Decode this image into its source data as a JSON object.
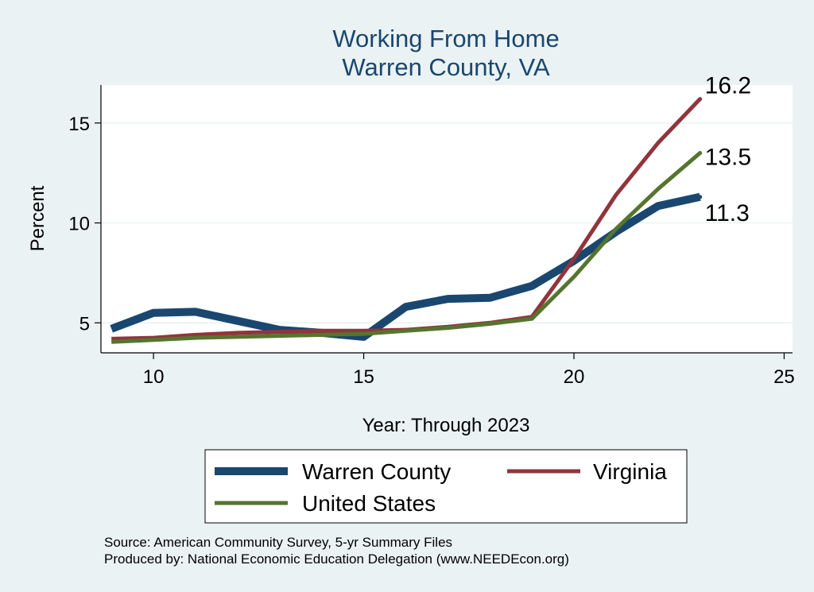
{
  "chart_data": {
    "type": "line",
    "title": "Working From Home",
    "subtitle": "Warren County, VA",
    "xlabel": "Year: Through 2023",
    "ylabel": "Percent",
    "xlim": [
      8.75,
      25.2
    ],
    "ylim": [
      3.5,
      16.9
    ],
    "x_ticks": [
      10,
      15,
      20,
      25
    ],
    "y_ticks": [
      5,
      10,
      15
    ],
    "grid": true,
    "legend_position": "bottom",
    "series": [
      {
        "name": "Warren County",
        "color": "#1a476f",
        "x": [
          9,
          10,
          11,
          12,
          13,
          14,
          15,
          16,
          17,
          18,
          19,
          20,
          21,
          22,
          23
        ],
        "y": [
          4.7,
          5.5,
          5.55,
          5.1,
          4.65,
          4.5,
          4.3,
          5.8,
          6.2,
          6.25,
          6.85,
          8.1,
          9.55,
          10.85,
          11.3
        ],
        "end_label": "11.3"
      },
      {
        "name": "Virginia",
        "color": "#90353b",
        "x": [
          9,
          10,
          11,
          12,
          13,
          14,
          15,
          16,
          17,
          18,
          19,
          20,
          21,
          22,
          23
        ],
        "y": [
          4.2,
          4.25,
          4.4,
          4.5,
          4.55,
          4.6,
          4.6,
          4.65,
          4.8,
          5.0,
          5.3,
          8.2,
          11.4,
          14.0,
          16.2
        ],
        "end_label": "16.2"
      },
      {
        "name": "United States",
        "color": "#55752f",
        "x": [
          9,
          10,
          11,
          12,
          13,
          14,
          15,
          16,
          17,
          18,
          19,
          20,
          21,
          22,
          23
        ],
        "y": [
          4.05,
          4.15,
          4.25,
          4.3,
          4.35,
          4.4,
          4.45,
          4.6,
          4.75,
          4.95,
          5.2,
          7.3,
          9.7,
          11.7,
          13.5
        ],
        "end_label": "13.5"
      }
    ],
    "source_note": "Source: American Community Survey, 5-yr Summary Files",
    "producer_note": "Produced by: National Economic Education Delegation (www.NEEDEcon.org)"
  }
}
